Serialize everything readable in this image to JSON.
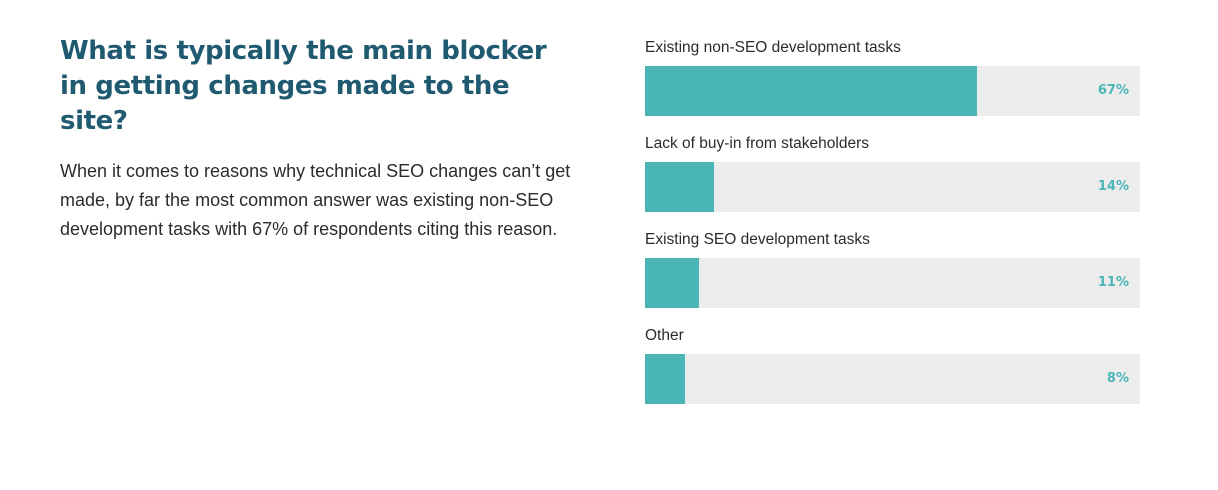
{
  "heading": "What is typically the main blocker in getting changes made to the site?",
  "body": "When it comes to reasons why technical SEO changes can’t get made, by far the most common answer was existing non-SEO development tasks with 67% of respondents citing this reason.",
  "colors": {
    "heading": "#1f5a70",
    "bar_fill": "#4bb6b8",
    "bar_track": "#ececec",
    "value_text": "#4bb6b8"
  },
  "chart_data": {
    "type": "bar",
    "orientation": "horizontal",
    "categories": [
      "Existing non-SEO development tasks",
      "Lack of buy-in from stakeholders",
      "Existing SEO development tasks",
      "Other"
    ],
    "values": [
      67,
      14,
      11,
      8
    ],
    "value_labels": [
      "67%",
      "14%",
      "11%",
      "8%"
    ],
    "xlim": [
      0,
      100
    ],
    "grid": false
  }
}
